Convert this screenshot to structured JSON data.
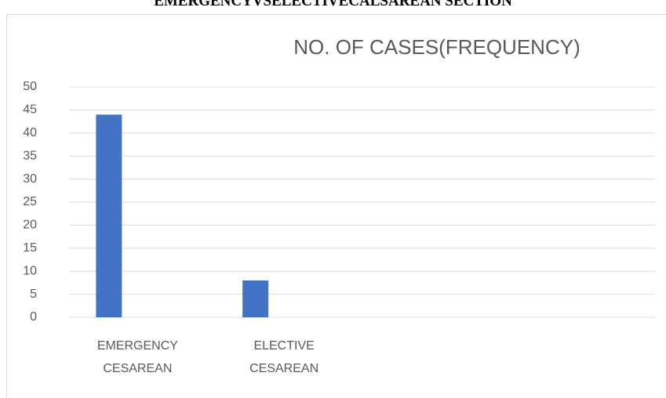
{
  "heading": "EMERGENCYVSELECTIVECALSAREAN SECTION",
  "chart_data": {
    "type": "bar",
    "title": "NO. OF CASES(FREQUENCY)",
    "categories": [
      "EMERGENCY CESAREAN",
      "ELECTIVE CESAREAN",
      null,
      null
    ],
    "values": [
      44,
      8,
      null,
      null
    ],
    "color": "#4472c4",
    "ylim": [
      0,
      50
    ],
    "yticks": [
      0,
      5,
      10,
      15,
      20,
      25,
      30,
      35,
      40,
      45,
      50
    ],
    "grid": true
  }
}
